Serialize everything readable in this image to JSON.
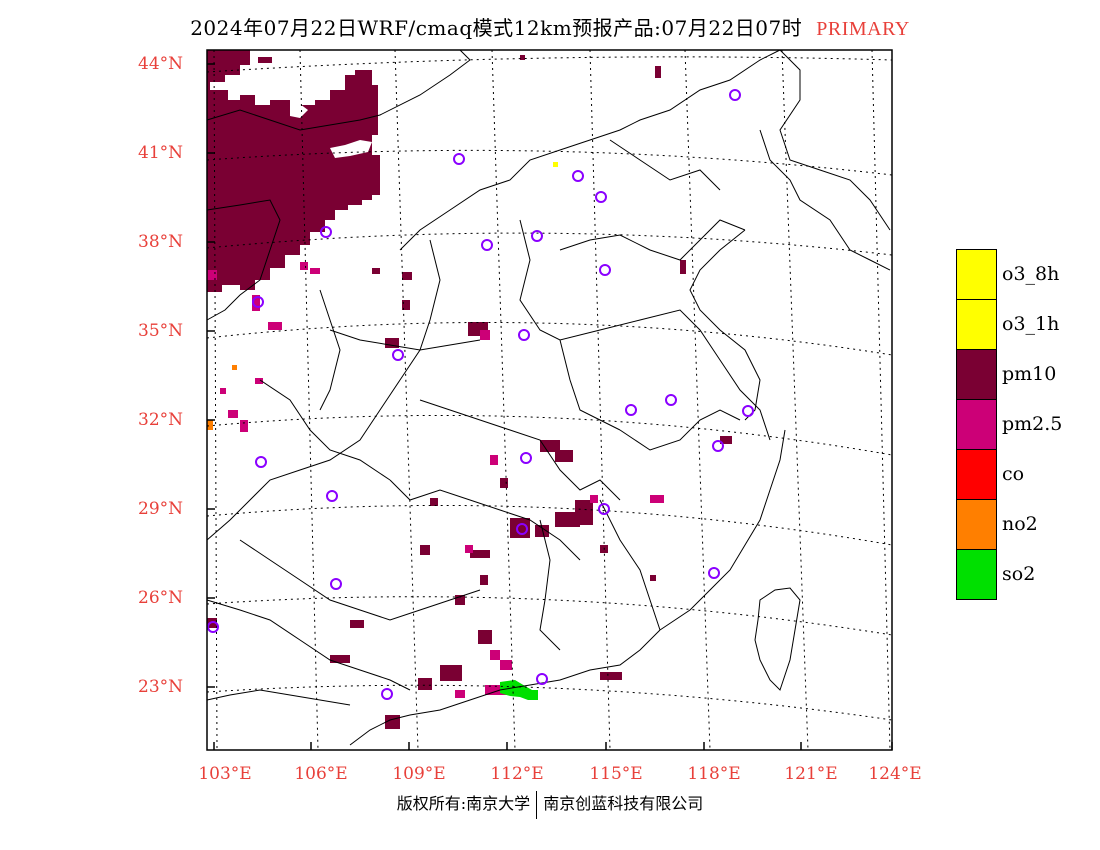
{
  "title": {
    "text": "2024年07月22日WRF/cmaq模式12km预报产品:07月22日07时",
    "tag": "PRIMARY"
  },
  "axes": {
    "lat_labels": [
      "44°N",
      "41°N",
      "38°N",
      "35°N",
      "32°N",
      "29°N",
      "26°N",
      "23°N"
    ],
    "lon_labels": [
      "103°E",
      "106°E",
      "109°E",
      "112°E",
      "115°E",
      "118°E",
      "121°E",
      "124°E"
    ]
  },
  "legend": {
    "items": [
      {
        "label": "o3_8h",
        "color": "#ffff00"
      },
      {
        "label": "o3_1h",
        "color": "#ffff00"
      },
      {
        "label": "pm10",
        "color": "#7a0033"
      },
      {
        "label": "pm2.5",
        "color": "#cc0077"
      },
      {
        "label": "co",
        "color": "#ff0000"
      },
      {
        "label": "no2",
        "color": "#ff7f00"
      },
      {
        "label": "so2",
        "color": "#00e000"
      }
    ]
  },
  "footer": {
    "left": "版权所有:南京大学",
    "right": "南京创蓝科技有限公司"
  },
  "colors": {
    "pm10": "#7a0033",
    "pm25": "#cc0077",
    "so2": "#00e000",
    "no2": "#ff7f00",
    "o3": "#ffff00",
    "station": "#8a00ff",
    "axis_label": "#e8403a"
  }
}
